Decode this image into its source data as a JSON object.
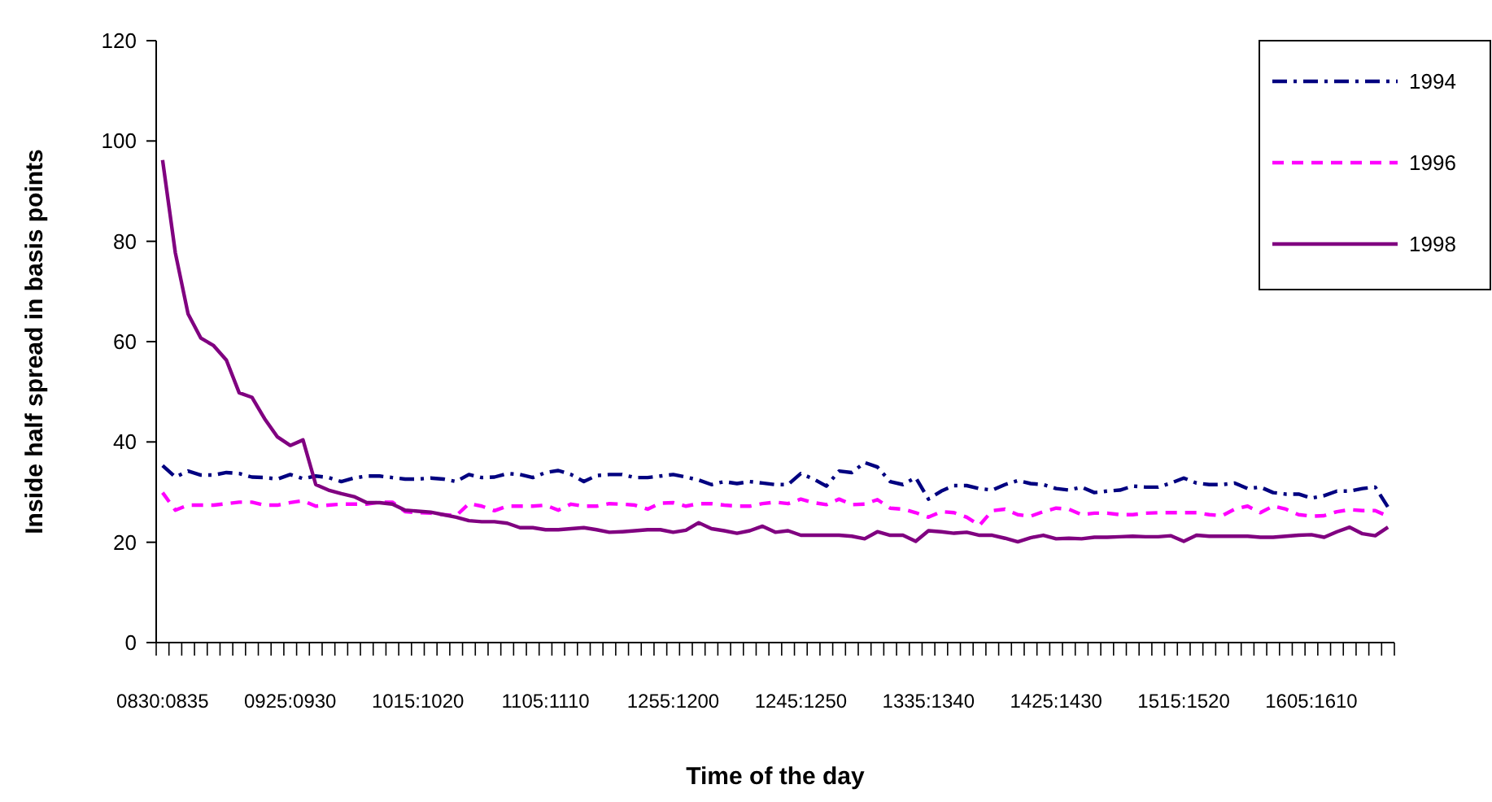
{
  "chart_data": {
    "type": "line",
    "xlabel": "Time of the day",
    "ylabel": "Inside half spread in basis points",
    "categories": [
      "0830:0835",
      null,
      null,
      null,
      null,
      null,
      null,
      null,
      null,
      null,
      "0925:0930",
      null,
      null,
      null,
      null,
      null,
      null,
      null,
      null,
      null,
      "1015:1020",
      null,
      null,
      null,
      null,
      null,
      null,
      null,
      null,
      null,
      "1105:1110",
      null,
      null,
      null,
      null,
      null,
      null,
      null,
      null,
      null,
      "1255:1200",
      null,
      null,
      null,
      null,
      null,
      null,
      null,
      null,
      null,
      "1245:1250",
      null,
      null,
      null,
      null,
      null,
      null,
      null,
      null,
      null,
      "1335:1340",
      null,
      null,
      null,
      null,
      null,
      null,
      null,
      null,
      null,
      "1425:1430",
      null,
      null,
      null,
      null,
      null,
      null,
      null,
      null,
      null,
      "1515:1520",
      null,
      null,
      null,
      null,
      null,
      null,
      null,
      null,
      null,
      "1605:1610",
      null,
      null,
      null,
      null,
      null,
      null
    ],
    "ylim": [
      0,
      120
    ],
    "yticks": [
      0,
      20,
      40,
      60,
      80,
      100,
      120
    ],
    "grid": false,
    "legend": "top right",
    "marker": "none",
    "series": [
      {
        "name": "1994",
        "color": "#000080",
        "line_style": "dashdot",
        "values": [
          35.3,
          33,
          34.2,
          33.4,
          33.4,
          33.9,
          33.7,
          33,
          32.9,
          32.6,
          33.5,
          32.7,
          33.2,
          32.9,
          32.1,
          32.8,
          33.2,
          33.2,
          32.9,
          32.6,
          32.6,
          32.8,
          32.6,
          32.1,
          33.5,
          32.9,
          33,
          33.7,
          33.5,
          32.9,
          33.9,
          34.3,
          33.5,
          32.1,
          33.3,
          33.5,
          33.5,
          32.9,
          32.9,
          33.2,
          33.5,
          33,
          32.4,
          31.5,
          32.1,
          31.7,
          32.1,
          31.8,
          31.5,
          31.5,
          33.7,
          32.6,
          31.2,
          34.2,
          33.9,
          35.9,
          35,
          32.1,
          31.5,
          32.9,
          28.6,
          30.2,
          31.3,
          31.3,
          30.7,
          30.4,
          31.5,
          32.3,
          31.7,
          31.5,
          30.7,
          30.4,
          31,
          29.9,
          30.2,
          30.4,
          31.2,
          31,
          31,
          31.8,
          32.8,
          31.8,
          31.5,
          31.5,
          31.8,
          30.7,
          31,
          29.9,
          29.6,
          29.6,
          28.8,
          29.3,
          30.2,
          30.2,
          30.7,
          31,
          27
        ]
      },
      {
        "name": "1996",
        "color": "#ff00ff",
        "line_style": "dashed",
        "values": [
          29.9,
          26.4,
          27.4,
          27.4,
          27.4,
          27.7,
          28,
          28,
          27.4,
          27.4,
          27.9,
          28.3,
          27.2,
          27.4,
          27.6,
          27.6,
          27.6,
          28,
          28,
          26.1,
          25.9,
          25.8,
          25.5,
          25.3,
          27.7,
          27.2,
          26.3,
          27.2,
          27.2,
          27.2,
          27.4,
          26.4,
          27.6,
          27.2,
          27.2,
          27.7,
          27.6,
          27.4,
          26.6,
          27.8,
          27.9,
          27.2,
          27.7,
          27.7,
          27.4,
          27.2,
          27.2,
          27.7,
          28,
          27.7,
          28.6,
          27.9,
          27.5,
          28.6,
          27.5,
          27.6,
          28.5,
          26.8,
          26.6,
          25.9,
          25,
          26.1,
          25.9,
          25,
          23.4,
          26.3,
          26.6,
          25.5,
          25.2,
          26.1,
          26.8,
          26.6,
          25.5,
          25.8,
          25.8,
          25.5,
          25.5,
          25.8,
          25.9,
          25.9,
          25.9,
          25.9,
          25.5,
          25.3,
          26.6,
          27.2,
          25.9,
          27.2,
          26.6,
          25.5,
          25.2,
          25.3,
          26.1,
          26.5,
          26.3,
          26.3,
          25.2
        ]
      },
      {
        "name": "1998",
        "color": "#800080",
        "line_style": "solid",
        "values": [
          96.2,
          77.7,
          65.5,
          60.7,
          59.2,
          56.3,
          49.8,
          48.9,
          44.6,
          41,
          39.3,
          40.4,
          31.5,
          30.4,
          29.7,
          29.1,
          27.9,
          27.9,
          27.6,
          26.4,
          26.2,
          26,
          25.5,
          25,
          24.3,
          24.1,
          24.1,
          23.8,
          22.9,
          22.9,
          22.5,
          22.5,
          22.7,
          22.9,
          22.5,
          22,
          22.1,
          22.3,
          22.5,
          22.5,
          22,
          22.4,
          23.9,
          22.7,
          22.3,
          21.8,
          22.3,
          23.2,
          22,
          22.3,
          21.4,
          21.4,
          21.4,
          21.4,
          21.2,
          20.7,
          22.1,
          21.4,
          21.4,
          20.2,
          22.3,
          22.1,
          21.8,
          22,
          21.4,
          21.4,
          20.8,
          20.1,
          20.9,
          21.4,
          20.7,
          20.8,
          20.7,
          21,
          21,
          21.1,
          21.2,
          21.1,
          21.1,
          21.3,
          20.2,
          21.4,
          21.2,
          21.2,
          21.2,
          21.2,
          21,
          21,
          21.2,
          21.4,
          21.5,
          21,
          22.1,
          23,
          21.7,
          21.3,
          23
        ]
      }
    ]
  }
}
